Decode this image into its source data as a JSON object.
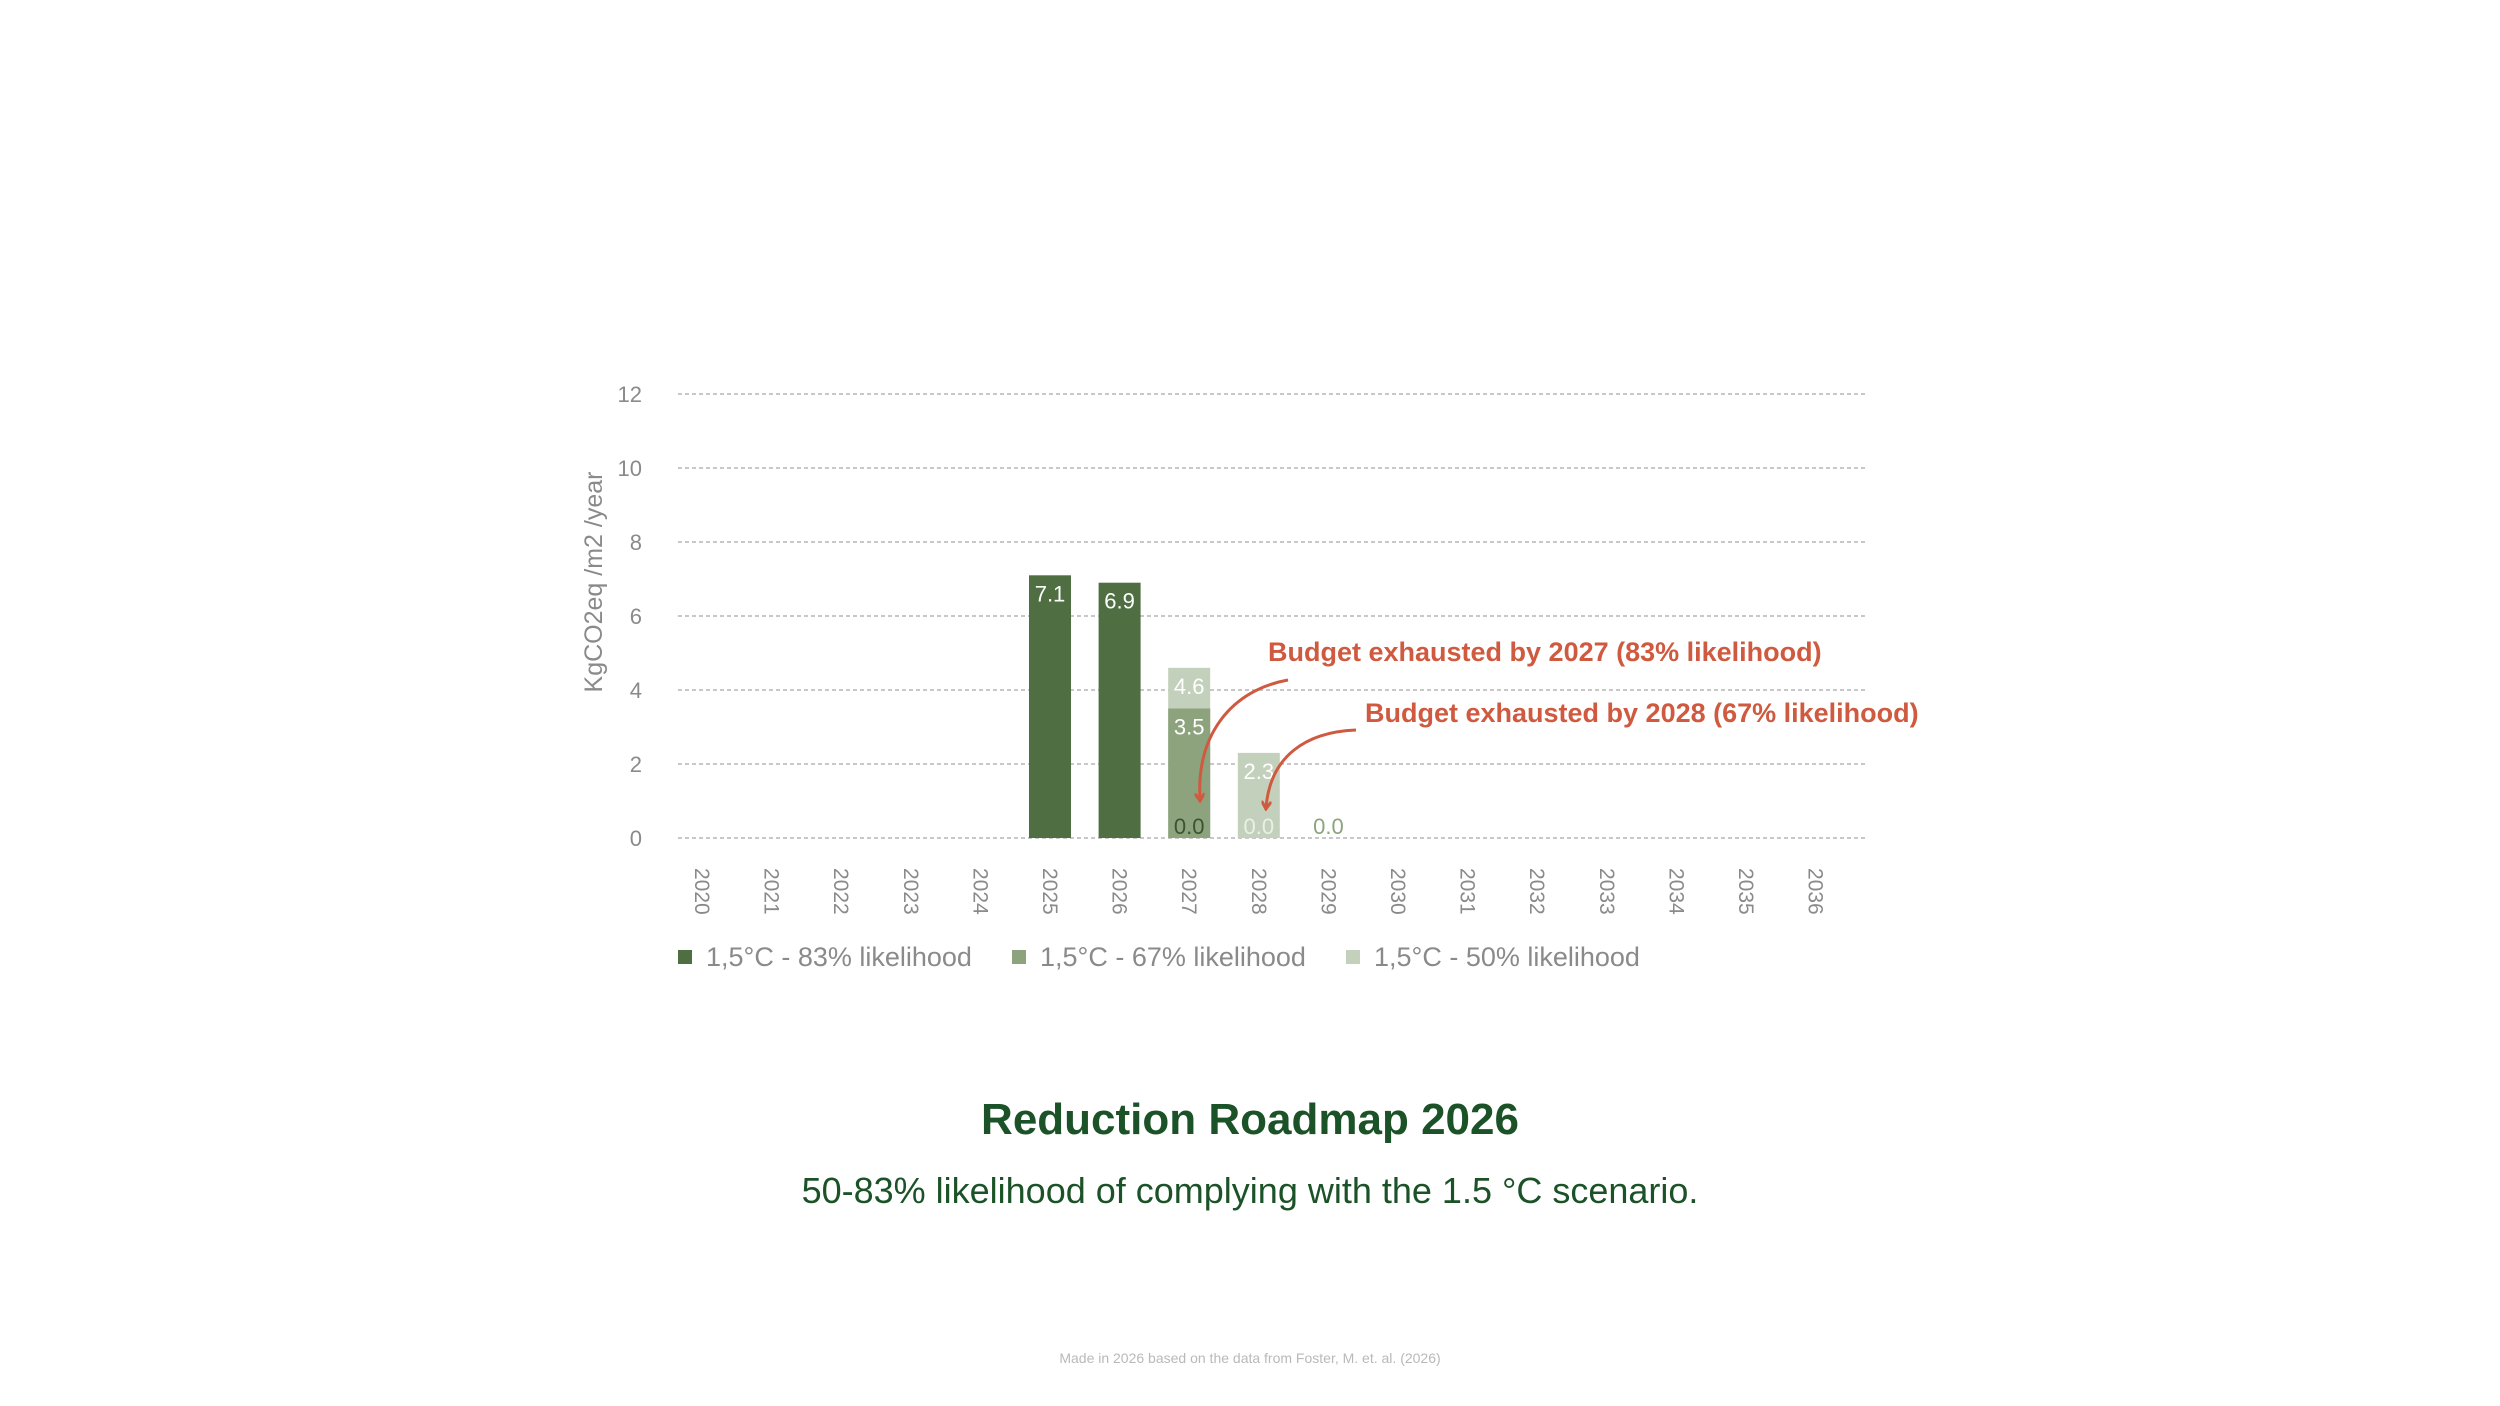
{
  "chart_data": {
    "type": "bar",
    "categories": [
      "2020",
      "2021",
      "2022",
      "2023",
      "2024",
      "2025",
      "2026",
      "2027",
      "2028",
      "2029",
      "2030",
      "2031",
      "2032",
      "2033",
      "2034",
      "2035",
      "2036"
    ],
    "series": [
      {
        "name": "1,5°C - 83% likelihood",
        "color": "#4f6f42",
        "values": [
          null,
          null,
          null,
          null,
          null,
          7.1,
          6.9,
          0.0,
          null,
          null,
          null,
          null,
          null,
          null,
          null,
          null,
          null
        ]
      },
      {
        "name": "1,5°C - 67% likelihood",
        "color": "#8ca37e",
        "values": [
          null,
          null,
          null,
          null,
          null,
          null,
          null,
          3.5,
          0.0,
          null,
          null,
          null,
          null,
          null,
          null,
          null,
          null
        ]
      },
      {
        "name": "1,5°C - 50% likelihood",
        "color": "#c3d0bb",
        "values": [
          null,
          null,
          null,
          null,
          null,
          null,
          null,
          4.6,
          2.3,
          0.0,
          null,
          null,
          null,
          null,
          null,
          null,
          null
        ]
      }
    ],
    "ylabel": "KgCO2eq /m2 /year",
    "ylim": [
      0,
      12
    ],
    "yticks": [
      0,
      2,
      4,
      6,
      8,
      10,
      12
    ],
    "grid": true,
    "legend": "bottom",
    "annotations": [
      {
        "text": "Budget exhausted by 2027 (83% likelihood)",
        "category": "2027",
        "color": "#cf5a40"
      },
      {
        "text": "Budget exhausted by 2028 (67% likelihood)",
        "category": "2028",
        "color": "#cf5a40"
      }
    ]
  },
  "title": "Reduction Roadmap 2026",
  "subtitle": "50-83% likelihood of complying with the 1.5 °C scenario.",
  "footnote": "Made in 2026 based on the data from Foster, M. et. al. (2026)"
}
